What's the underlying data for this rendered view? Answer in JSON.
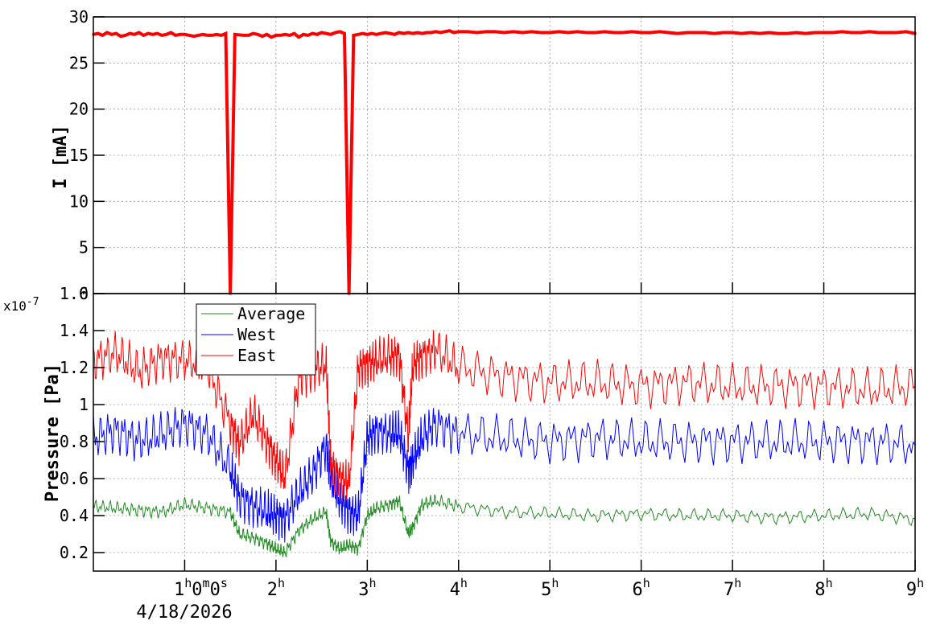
{
  "chart_data": [
    {
      "type": "scatter",
      "ylabel": "I [mA]",
      "ylim": [
        0,
        30
      ],
      "yticks": [
        "0",
        "5",
        "10",
        "15",
        "20",
        "25",
        "30"
      ],
      "grid": true,
      "color": "#ff0000",
      "description_of_data": "beam current samples over time (hours)",
      "series": [
        {
          "x": [
            0.0,
            0.05,
            0.1,
            0.15,
            0.2,
            0.25,
            0.3,
            0.35,
            0.4,
            0.45,
            0.5,
            0.55,
            0.6,
            0.65,
            0.7,
            0.75,
            0.8,
            0.85,
            0.9,
            0.95,
            1.0,
            1.05,
            1.1,
            1.15,
            1.2,
            1.25,
            1.3,
            1.35,
            1.4,
            1.45,
            1.5,
            1.55,
            1.65,
            1.7,
            1.75,
            1.8,
            1.85,
            1.9,
            1.95,
            2.0,
            2.05,
            2.1,
            2.15,
            2.2,
            2.25,
            2.3,
            2.35,
            2.4,
            2.45,
            2.5,
            2.55,
            2.6,
            2.65,
            2.7,
            2.75,
            2.8,
            2.85,
            2.9,
            2.95,
            3.0,
            3.05,
            3.1,
            3.15,
            3.2,
            3.25,
            3.3,
            3.35,
            3.4,
            3.45,
            3.5,
            3.55,
            3.6,
            3.65,
            3.7,
            3.75,
            3.8,
            3.85,
            3.9,
            3.95,
            4.0,
            4.1,
            4.2,
            4.3,
            4.4,
            4.5,
            4.6,
            4.7,
            4.8,
            4.9,
            5.0,
            5.1,
            5.2,
            5.3,
            5.4,
            5.5,
            5.6,
            5.7,
            5.8,
            5.9,
            6.0,
            6.1,
            6.2,
            6.3,
            6.4,
            6.5,
            6.6,
            6.7,
            6.8,
            6.9,
            7.0,
            7.1,
            7.2,
            7.3,
            7.4,
            7.5,
            7.6,
            7.7,
            7.8,
            7.9,
            8.0,
            8.1,
            8.2,
            8.3,
            8.4,
            8.5,
            8.6,
            8.7,
            8.8,
            8.9,
            9.0
          ],
          "y": [
            28.1,
            28.2,
            28.0,
            28.3,
            28.1,
            28.2,
            27.9,
            28.0,
            28.2,
            28.1,
            28.3,
            28.0,
            28.2,
            28.1,
            28.2,
            28.0,
            28.1,
            28.3,
            28.0,
            28.1,
            28.1,
            28.0,
            27.9,
            28.0,
            28.1,
            28.0,
            28.0,
            28.1,
            28.0,
            28.2,
            0.0,
            28.1,
            28.0,
            28.0,
            28.2,
            28.1,
            27.9,
            28.1,
            27.8,
            28.0,
            28.0,
            28.1,
            28.0,
            28.2,
            27.8,
            28.1,
            28.0,
            28.2,
            28.1,
            28.3,
            28.2,
            28.1,
            28.3,
            28.4,
            28.2,
            0.0,
            28.0,
            28.1,
            28.2,
            28.1,
            28.2,
            28.1,
            28.2,
            28.3,
            28.2,
            28.1,
            28.3,
            28.2,
            28.3,
            28.2,
            28.3,
            28.2,
            28.3,
            28.3,
            28.4,
            28.3,
            28.4,
            28.5,
            28.3,
            28.4,
            28.4,
            28.3,
            28.4,
            28.4,
            28.3,
            28.4,
            28.3,
            28.4,
            28.3,
            28.3,
            28.4,
            28.3,
            28.4,
            28.3,
            28.3,
            28.4,
            28.3,
            28.3,
            28.4,
            28.3,
            28.3,
            28.4,
            28.3,
            28.2,
            28.3,
            28.3,
            28.3,
            28.2,
            28.3,
            28.3,
            28.2,
            28.3,
            28.2,
            28.3,
            28.2,
            28.2,
            28.3,
            28.2,
            28.3,
            28.3,
            28.3,
            28.4,
            28.3,
            28.3,
            28.4,
            28.3,
            28.3,
            28.3,
            28.4,
            28.2
          ]
        }
      ]
    },
    {
      "type": "line",
      "ylabel": "Pressure [Pa]",
      "yexponent": "x10",
      "yexponent_power": "-7",
      "ylim": [
        0.1,
        1.6
      ],
      "yticks": [
        "0.2",
        "0.4",
        "0.6",
        "0.8",
        "1",
        "1.2",
        "1.4",
        "1.6"
      ],
      "xlim": [
        0,
        9
      ],
      "xticks": [
        {
          "value": 1,
          "label": "1",
          "sup": "h",
          "extra": "0",
          "sup2": "m",
          "extra2": "0",
          "sup3": "s"
        },
        {
          "value": 2,
          "label": "2",
          "sup": "h"
        },
        {
          "value": 3,
          "label": "3",
          "sup": "h"
        },
        {
          "value": 4,
          "label": "4",
          "sup": "h"
        },
        {
          "value": 5,
          "label": "5",
          "sup": "h"
        },
        {
          "value": 6,
          "label": "6",
          "sup": "h"
        },
        {
          "value": 7,
          "label": "7",
          "sup": "h"
        },
        {
          "value": 8,
          "label": "8",
          "sup": "h"
        },
        {
          "value": 9,
          "label": "9",
          "sup": "h"
        }
      ],
      "date_label": "4/18/2026",
      "grid": true,
      "legend": [
        "Average",
        "West",
        "East"
      ],
      "series": [
        {
          "name": "Average",
          "color": "#228b22",
          "x": [
            0,
            0.25,
            0.5,
            0.75,
            1.0,
            1.25,
            1.5,
            1.6,
            1.75,
            1.9,
            2.0,
            2.1,
            2.25,
            2.4,
            2.55,
            2.6,
            2.7,
            2.8,
            2.9,
            3.0,
            3.1,
            3.25,
            3.35,
            3.45,
            3.5,
            3.6,
            3.75,
            4.0,
            4.5,
            5.0,
            5.5,
            6.0,
            6.5,
            7.0,
            7.5,
            8.0,
            8.5,
            9.0
          ],
          "y": [
            0.45,
            0.44,
            0.43,
            0.42,
            0.46,
            0.44,
            0.42,
            0.3,
            0.28,
            0.25,
            0.22,
            0.2,
            0.32,
            0.38,
            0.42,
            0.26,
            0.22,
            0.24,
            0.22,
            0.4,
            0.44,
            0.46,
            0.48,
            0.3,
            0.34,
            0.46,
            0.48,
            0.45,
            0.42,
            0.41,
            0.4,
            0.41,
            0.4,
            0.4,
            0.39,
            0.4,
            0.41,
            0.38
          ]
        },
        {
          "name": "West",
          "color": "#0000ff",
          "x": [
            0,
            0.25,
            0.5,
            0.75,
            1.0,
            1.25,
            1.5,
            1.6,
            1.75,
            1.9,
            2.0,
            2.1,
            2.25,
            2.4,
            2.55,
            2.6,
            2.7,
            2.8,
            2.9,
            3.0,
            3.1,
            3.25,
            3.35,
            3.45,
            3.5,
            3.6,
            3.75,
            4.0,
            4.5,
            5.0,
            5.5,
            6.0,
            6.5,
            7.0,
            7.5,
            8.0,
            8.5,
            9.0
          ],
          "y": [
            0.82,
            0.86,
            0.8,
            0.84,
            0.9,
            0.84,
            0.65,
            0.5,
            0.45,
            0.42,
            0.4,
            0.38,
            0.52,
            0.62,
            0.78,
            0.6,
            0.48,
            0.42,
            0.4,
            0.82,
            0.86,
            0.84,
            0.85,
            0.64,
            0.7,
            0.82,
            0.9,
            0.84,
            0.82,
            0.8,
            0.82,
            0.8,
            0.8,
            0.8,
            0.8,
            0.8,
            0.8,
            0.78
          ]
        },
        {
          "name": "East",
          "color": "#ff0000",
          "x": [
            0,
            0.25,
            0.5,
            0.75,
            1.0,
            1.25,
            1.5,
            1.6,
            1.75,
            1.9,
            2.0,
            2.1,
            2.25,
            2.4,
            2.55,
            2.6,
            2.7,
            2.8,
            2.9,
            3.0,
            3.1,
            3.25,
            3.35,
            3.45,
            3.5,
            3.6,
            3.75,
            4.0,
            4.5,
            5.0,
            5.5,
            6.0,
            6.5,
            7.0,
            7.5,
            8.0,
            8.5,
            9.0
          ],
          "y": [
            1.24,
            1.28,
            1.18,
            1.25,
            1.24,
            1.2,
            0.9,
            0.78,
            0.95,
            0.8,
            0.7,
            0.6,
            1.15,
            1.18,
            1.22,
            0.68,
            0.6,
            0.58,
            1.2,
            1.22,
            1.24,
            1.26,
            1.27,
            0.82,
            1.22,
            1.26,
            1.3,
            1.2,
            1.15,
            1.12,
            1.12,
            1.1,
            1.12,
            1.1,
            1.1,
            1.1,
            1.08,
            1.1
          ]
        }
      ]
    }
  ]
}
